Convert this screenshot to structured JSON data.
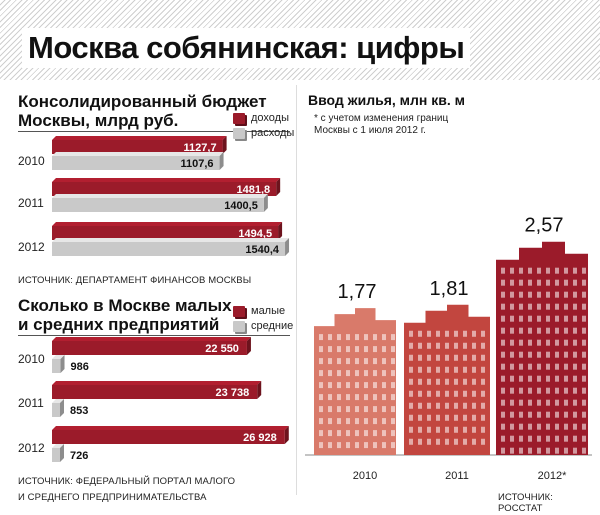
{
  "title": "Москва собянинская: цифры",
  "budget": {
    "title_line1": "Консолидированный бюджет",
    "title_line2": "Москвы, млрд руб.",
    "legend": [
      "доходы",
      "расходы"
    ],
    "source": "ИСТОЧНИК: ДЕПАРТАМЕНТ ФИНАНСОВ МОСКВЫ"
  },
  "business": {
    "title_line1": "Сколько в Москве малых",
    "title_line2": "и средних предприятий",
    "legend": [
      "малые",
      "средние"
    ],
    "source_line1": "ИСТОЧНИК: ФЕДЕРАЛЬНЫЙ ПОРТАЛ МАЛОГО",
    "source_line2": "И СРЕДНЕГО ПРЕДПРИНИМАТЕЛЬСТВА"
  },
  "housing": {
    "title": "Ввод жилья, млн кв. м",
    "note_line1": "* с учетом изменения границ",
    "note_line2": "Москвы с 1 июля 2012 г.",
    "source": "ИСТОЧНИК: РОССТАТ"
  },
  "colors": {
    "red": "#9b1b2a",
    "grey": "#c9c9c9",
    "salmon": "#d97a6a",
    "mid": "#c2463f"
  },
  "chart_data": [
    {
      "type": "bar",
      "orientation": "horizontal",
      "categories": [
        "2010",
        "2011",
        "2012"
      ],
      "series": [
        {
          "name": "доходы",
          "values": [
            1127.7,
            1481.8,
            1494.5
          ],
          "labels": [
            "1127,7",
            "1481,8",
            "1494,5"
          ]
        },
        {
          "name": "расходы",
          "values": [
            1107.6,
            1400.5,
            1540.4
          ],
          "labels": [
            "1107,6",
            "1400,5",
            "1540,4"
          ]
        }
      ]
    },
    {
      "type": "bar",
      "orientation": "horizontal",
      "categories": [
        "2010",
        "2011",
        "2012"
      ],
      "series": [
        {
          "name": "малые",
          "values": [
            22550,
            23738,
            26928
          ],
          "labels": [
            "22 550",
            "23 738",
            "26 928"
          ]
        },
        {
          "name": "средние",
          "values": [
            986,
            853,
            726
          ],
          "labels": [
            "986",
            "853",
            "726"
          ]
        }
      ]
    },
    {
      "type": "bar",
      "categories": [
        "2010",
        "2011",
        "2012*"
      ],
      "values": [
        1.77,
        1.81,
        2.57
      ],
      "labels": [
        "1,77",
        "1,81",
        "2,57"
      ]
    }
  ]
}
